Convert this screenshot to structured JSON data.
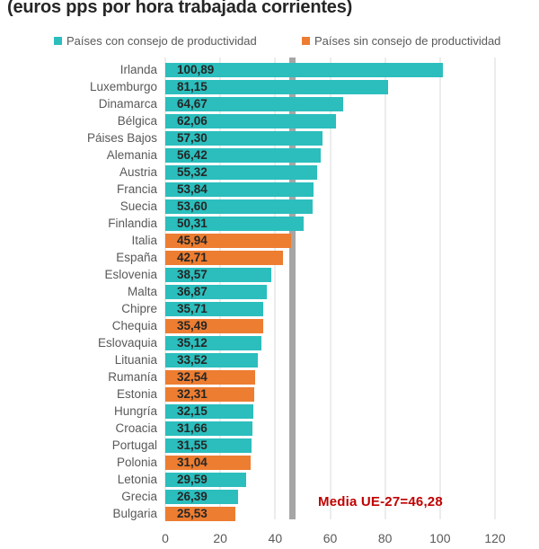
{
  "title": "(euros pps por hora trabajada corrientes)",
  "legend": {
    "with_council": "Países con consejo de productividad",
    "without_council": "Países sin consejo de productividad"
  },
  "annotation": {
    "text": "Media UE-27=46,28"
  },
  "colors": {
    "with_council": "#2BBEBD",
    "without_council": "#ED7D31",
    "reference_line": "#A6A6A6",
    "gridline": "#D9D9D9",
    "annotation_text": "#C00000",
    "country_text": "#595959",
    "value_text": "#262626"
  },
  "chart_data": {
    "type": "bar",
    "orientation": "horizontal",
    "title": "(euros pps por hora trabajada corrientes)",
    "xlabel": "",
    "ylabel": "",
    "xlim": [
      0,
      120
    ],
    "xticks": [
      0,
      20,
      40,
      60,
      80,
      100,
      120
    ],
    "grid": true,
    "legend_position": "top",
    "legend_entries": [
      "Países con consejo de productividad",
      "Países sin consejo de productividad"
    ],
    "reference_line": {
      "value": 46.28,
      "label": "Media UE-27=46,28"
    },
    "items": [
      {
        "country": "Irlanda",
        "value": 100.89,
        "label": "100,89",
        "group": "with_council"
      },
      {
        "country": "Luxemburgo",
        "value": 81.15,
        "label": "81,15",
        "group": "with_council"
      },
      {
        "country": "Dinamarca",
        "value": 64.67,
        "label": "64,67",
        "group": "with_council"
      },
      {
        "country": "Bélgica",
        "value": 62.06,
        "label": "62,06",
        "group": "with_council"
      },
      {
        "country": "Páises Bajos",
        "value": 57.3,
        "label": "57,30",
        "group": "with_council"
      },
      {
        "country": "Alemania",
        "value": 56.42,
        "label": "56,42",
        "group": "with_council"
      },
      {
        "country": "Austria",
        "value": 55.32,
        "label": "55,32",
        "group": "with_council"
      },
      {
        "country": "Francia",
        "value": 53.84,
        "label": "53,84",
        "group": "with_council"
      },
      {
        "country": "Suecia",
        "value": 53.6,
        "label": "53,60",
        "group": "with_council"
      },
      {
        "country": "Finlandia",
        "value": 50.31,
        "label": "50,31",
        "group": "with_council"
      },
      {
        "country": "Italia",
        "value": 45.94,
        "label": "45,94",
        "group": "without_council"
      },
      {
        "country": "España",
        "value": 42.71,
        "label": "42,71",
        "group": "without_council"
      },
      {
        "country": "Eslovenia",
        "value": 38.57,
        "label": "38,57",
        "group": "with_council"
      },
      {
        "country": "Malta",
        "value": 36.87,
        "label": "36,87",
        "group": "with_council"
      },
      {
        "country": "Chipre",
        "value": 35.71,
        "label": "35,71",
        "group": "with_council"
      },
      {
        "country": "Chequia",
        "value": 35.49,
        "label": "35,49",
        "group": "without_council"
      },
      {
        "country": "Eslovaquia",
        "value": 35.12,
        "label": "35,12",
        "group": "with_council"
      },
      {
        "country": "Lituania",
        "value": 33.52,
        "label": "33,52",
        "group": "with_council"
      },
      {
        "country": "Rumanía",
        "value": 32.54,
        "label": "32,54",
        "group": "without_council"
      },
      {
        "country": "Estonia",
        "value": 32.31,
        "label": "32,31",
        "group": "without_council"
      },
      {
        "country": "Hungría",
        "value": 32.15,
        "label": "32,15",
        "group": "with_council"
      },
      {
        "country": "Croacia",
        "value": 31.66,
        "label": "31,66",
        "group": "with_council"
      },
      {
        "country": "Portugal",
        "value": 31.55,
        "label": "31,55",
        "group": "with_council"
      },
      {
        "country": "Polonia",
        "value": 31.04,
        "label": "31,04",
        "group": "without_council"
      },
      {
        "country": "Letonia",
        "value": 29.59,
        "label": "29,59",
        "group": "with_council"
      },
      {
        "country": "Grecia",
        "value": 26.39,
        "label": "26,39",
        "group": "with_council"
      },
      {
        "country": "Bulgaria",
        "value": 25.53,
        "label": "25,53",
        "group": "without_council"
      }
    ]
  }
}
